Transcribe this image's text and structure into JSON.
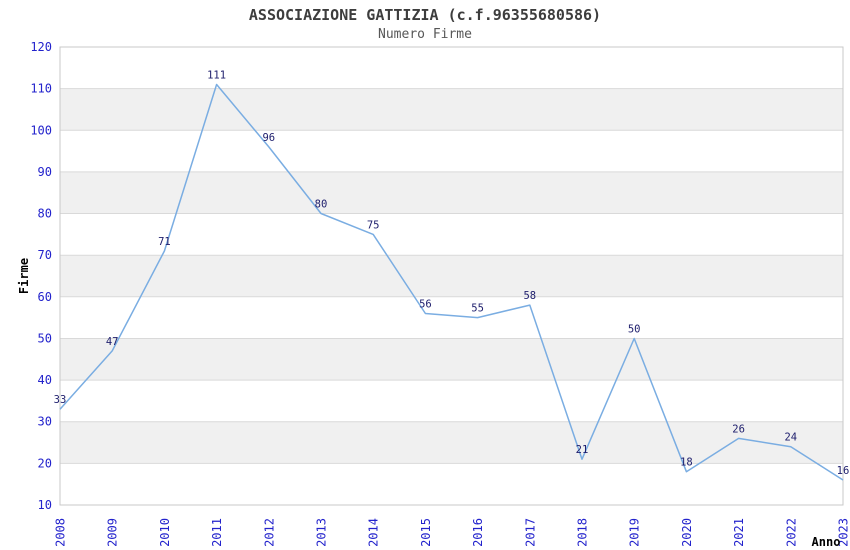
{
  "chart_data": {
    "type": "line",
    "title": "ASSOCIAZIONE GATTIZIA (c.f.96355680586)",
    "subtitle": "Numero Firme",
    "xlabel": "Anno",
    "ylabel": "Firme",
    "categories": [
      "2008",
      "2009",
      "2010",
      "2011",
      "2012",
      "2013",
      "2014",
      "2015",
      "2016",
      "2017",
      "2018",
      "2019",
      "2020",
      "2021",
      "2022",
      "2023"
    ],
    "values": [
      33,
      47,
      71,
      111,
      96,
      80,
      75,
      56,
      55,
      58,
      21,
      50,
      18,
      26,
      24,
      16
    ],
    "ylim": [
      10,
      120
    ],
    "ytick_step": 10,
    "yticks": [
      10,
      20,
      30,
      40,
      50,
      60,
      70,
      80,
      90,
      100,
      110,
      120
    ],
    "grid": "horizontal-gridlines-with-alternating-bands",
    "legend": "none",
    "markers": "none",
    "data_labels": "above-points",
    "x_tick_rotation_deg": -90,
    "colors": {
      "line": "#7aade2",
      "tick_label": "#2323cc",
      "data_label": "#20206e",
      "band": "#f0f0f0",
      "gridline": "#d9d9d9",
      "plot_border": "#c9c9c9",
      "title": "#3d3d3d",
      "subtitle": "#575757",
      "axis_title": "#000000",
      "background": "#ffffff"
    }
  }
}
